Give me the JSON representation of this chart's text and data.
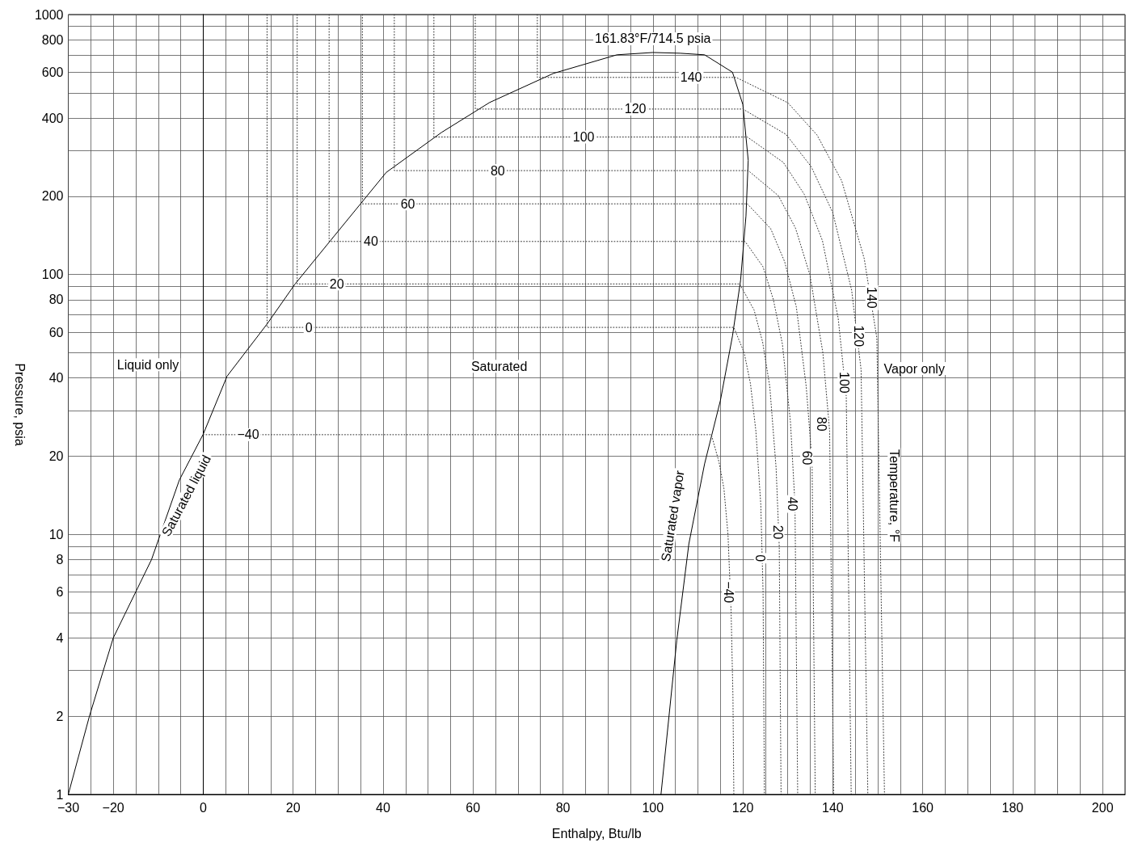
{
  "chart_data": {
    "type": "line",
    "xlabel": "Enthalpy, Btu/lb",
    "ylabel": "Pressure, psia",
    "log": "y",
    "grid": true,
    "xlim": [
      -30,
      205
    ],
    "ylim": [
      1,
      1000
    ],
    "xticks": [
      {
        "value": -30,
        "label": "−30"
      },
      {
        "value": -25,
        "label": null
      },
      {
        "value": -20,
        "label": "−20"
      },
      {
        "value": -15,
        "label": null
      },
      {
        "value": -10,
        "label": null
      },
      {
        "value": -5,
        "label": null
      },
      0,
      {
        "value": 5,
        "label": null
      },
      {
        "value": 10,
        "label": null
      },
      {
        "value": 15,
        "label": null
      },
      20,
      {
        "value": 25,
        "label": null
      },
      {
        "value": 30,
        "label": null
      },
      {
        "value": 35,
        "label": null
      },
      40,
      {
        "value": 45,
        "label": null
      },
      {
        "value": 50,
        "label": null
      },
      {
        "value": 55,
        "label": null
      },
      60,
      {
        "value": 65,
        "label": null
      },
      {
        "value": 70,
        "label": null
      },
      {
        "value": 75,
        "label": null
      },
      80,
      {
        "value": 85,
        "label": null
      },
      {
        "value": 90,
        "label": null
      },
      {
        "value": 95,
        "label": null
      },
      100,
      {
        "value": 105,
        "label": null
      },
      {
        "value": 110,
        "label": null
      },
      {
        "value": 115,
        "label": null
      },
      120,
      {
        "value": 125,
        "label": null
      },
      {
        "value": 130,
        "label": null
      },
      {
        "value": 135,
        "label": null
      },
      140,
      {
        "value": 145,
        "label": null
      },
      {
        "value": 150,
        "label": null
      },
      {
        "value": 155,
        "label": null
      },
      160,
      {
        "value": 165,
        "label": null
      },
      {
        "value": 170,
        "label": null
      },
      {
        "value": 175,
        "label": null
      },
      180,
      {
        "value": 185,
        "label": null
      },
      {
        "value": 190,
        "label": null
      },
      {
        "value": 195,
        "label": null
      },
      200
    ],
    "yticks": [
      1,
      2,
      {
        "value": 3,
        "label": null
      },
      4,
      {
        "value": 5,
        "label": null
      },
      6,
      {
        "value": 7,
        "label": null
      },
      8,
      {
        "value": 9,
        "label": null
      },
      10,
      20,
      {
        "value": 30,
        "label": null
      },
      40,
      {
        "value": 50,
        "label": null
      },
      60,
      {
        "value": 70,
        "label": null
      },
      80,
      {
        "value": 90,
        "label": null
      },
      100,
      200,
      {
        "value": 300,
        "label": null
      },
      400,
      {
        "value": 500,
        "label": null
      },
      600,
      {
        "value": 700,
        "label": null
      },
      800,
      {
        "value": 900,
        "label": null
      },
      1000
    ],
    "series": [
      {
        "color": "#000000",
        "line_style": "solid",
        "x": [
          -30,
          -25.3,
          -20,
          -11.5,
          -5.3,
          0,
          5.3,
          14.2,
          20.4,
          28.3,
          40.7,
          53,
          63.7,
          77.9,
          92,
          100,
          106,
          111.5,
          117.7,
          120,
          121.2,
          120.7,
          119.5,
          117.7,
          115,
          111.5,
          108,
          105.3,
          101.8
        ],
        "values": [
          1,
          2,
          4,
          8,
          16.2,
          24.3,
          40.6,
          64.5,
          91.8,
          135,
          247,
          352,
          459,
          594,
          700,
          714.5,
          710,
          700,
          600,
          451,
          275,
          168,
          95,
          58,
          32.7,
          18.7,
          9.2,
          3.9,
          1
        ]
      },
      {
        "color": "#333333",
        "line_style": "dotted",
        "x": [
          74.3,
          74.3,
          118.5,
          130,
          136.5,
          142,
          147,
          149.8,
          151.5
        ],
        "values": [
          1000,
          573,
          573,
          458,
          344,
          229,
          115,
          57,
          1
        ]
      },
      {
        "color": "#333333",
        "line_style": "dotted",
        "x": [
          60.5,
          60.5,
          120,
          129.6,
          135.2,
          140,
          144.2,
          146.3,
          147.8
        ],
        "values": [
          1000,
          433,
          433,
          346,
          260,
          173,
          87,
          43,
          1
        ]
      },
      {
        "color": "#333333",
        "line_style": "dotted",
        "x": [
          51.3,
          51.3,
          121,
          129,
          133.7,
          137.7,
          141.2,
          143,
          144.1
        ],
        "values": [
          1000,
          338,
          338,
          270,
          203,
          135,
          68,
          34,
          1
        ]
      },
      {
        "color": "#333333",
        "line_style": "dotted",
        "x": [
          42.5,
          42.5,
          121.2,
          127.9,
          131.7,
          134.9,
          137.8,
          139.3,
          140.2
        ],
        "values": [
          1000,
          251,
          251,
          201,
          151,
          100,
          50,
          25,
          1
        ]
      },
      {
        "color": "#333333",
        "line_style": "dotted",
        "x": [
          35.4,
          35.4,
          121,
          126.2,
          129.3,
          131.9,
          134.1,
          135.4,
          136.1
        ],
        "values": [
          1000,
          187,
          187,
          150,
          112,
          75,
          37,
          19,
          1
        ]
      },
      {
        "color": "#333333",
        "line_style": "dotted",
        "x": [
          28,
          28,
          120.5,
          124.5,
          126.8,
          128.8,
          130.6,
          131.6,
          132.2
        ],
        "values": [
          1000,
          134,
          134,
          107,
          80,
          54,
          27,
          13,
          1
        ]
      },
      {
        "color": "#333333",
        "line_style": "dotted",
        "x": [
          20.9,
          20.9,
          119.3,
          122.5,
          124.4,
          126,
          127.4,
          128.1,
          128.5
        ],
        "values": [
          1000,
          92,
          92,
          73,
          55,
          37,
          18,
          9,
          1
        ]
      },
      {
        "color": "#333333",
        "line_style": "dotted",
        "x": [
          14.2,
          14.2,
          118,
          120.3,
          121.7,
          122.9,
          124,
          124.5,
          124.8
        ],
        "values": [
          1000,
          62.6,
          62.6,
          50,
          38,
          25,
          13,
          6,
          1
        ]
      },
      {
        "color": "#333333",
        "line_style": "dotted",
        "x": [
          0,
          113,
          114.7,
          115.8,
          116.7,
          117.4,
          117.8,
          118
        ],
        "values": [
          24.2,
          24.2,
          19,
          15,
          10,
          5,
          2.4,
          1
        ]
      }
    ],
    "annotations": [
      {
        "text": "161.83°F/714.5 psia",
        "x": 100,
        "y": 714.5
      },
      "Liquid only",
      "Saturated",
      "Vapor only",
      "Saturated liquid",
      "Saturated vapor",
      "Temperature, °F",
      {
        "text": "140",
        "x": 108.5,
        "y": 573
      },
      {
        "text": "120",
        "x": 96.1,
        "y": 433
      },
      {
        "text": "100",
        "x": 84.6,
        "y": 338
      },
      {
        "text": "80",
        "x": 65.5,
        "y": 251
      },
      {
        "text": "60",
        "x": 45.5,
        "y": 187
      },
      {
        "text": "40",
        "x": 37.3,
        "y": 134
      },
      {
        "text": "20",
        "x": 29.7,
        "y": 92
      },
      {
        "text": "0",
        "x": 23.5,
        "y": 62.6
      },
      {
        "text": "−40",
        "x": 10,
        "y": 24.2
      },
      {
        "text": "140",
        "x": 148.7,
        "y": 81.4
      },
      {
        "text": "120",
        "x": 145.7,
        "y": 58
      },
      {
        "text": "100",
        "x": 142.5,
        "y": 38.4
      },
      {
        "text": "80",
        "x": 137.5,
        "y": 26.6
      },
      {
        "text": "60",
        "x": 134.2,
        "y": 19.7
      },
      {
        "text": "40",
        "x": 131,
        "y": 13.1
      },
      {
        "text": "20",
        "x": 127.8,
        "y": 10.2
      },
      {
        "text": "0",
        "x": 123.9,
        "y": 8.1
      },
      {
        "text": "−40",
        "x": 116.8,
        "y": 6
      }
    ]
  }
}
